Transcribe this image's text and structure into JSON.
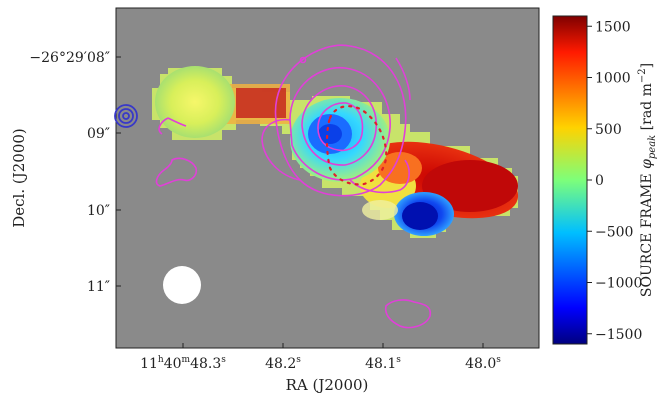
{
  "chart_data": {
    "type": "heatmap",
    "title": "",
    "xlabel": "RA (J2000)",
    "ylabel": "Decl. (J2000)",
    "x_ticks": [
      {
        "label_main": "11",
        "sup1": "h",
        "label_mid": "40",
        "sup2": "m",
        "label_end": "48.3",
        "sup3": "s",
        "value": 48.3
      },
      {
        "label_main": "48.2",
        "sup": "s",
        "value": 48.2
      },
      {
        "label_main": "48.1",
        "sup": "s",
        "value": 48.1
      },
      {
        "label_main": "48.0",
        "sup": "s",
        "value": 48.0
      }
    ],
    "y_ticks": [
      {
        "label": "−26°29′08″",
        "value": 8
      },
      {
        "label": "09″",
        "value": 9
      },
      {
        "label": "10″",
        "value": 10
      },
      {
        "label": "11″",
        "value": 11
      }
    ],
    "colorbar": {
      "label_prefix": "SOURCE FRAME ",
      "label_symbol": "φ",
      "label_sub": "peak",
      "label_units": " [rad m",
      "label_sup": "−2",
      "label_close": "]",
      "colormap": "jet",
      "range": [
        -1600,
        1600
      ],
      "ticks": [
        1500,
        1000,
        500,
        0,
        -500,
        -1000,
        -1500
      ],
      "tick_labels": [
        "1500",
        "1000",
        "500",
        "0",
        "−500",
        "−1000",
        "−1500"
      ]
    },
    "background_color": "#8a8a8a",
    "contour_color": "#e040d8",
    "blue_marker_color": "#3838c8",
    "red_dotted_color": "#e0202a",
    "beam_color": "#ffffff",
    "grid": false,
    "legend": "none"
  }
}
